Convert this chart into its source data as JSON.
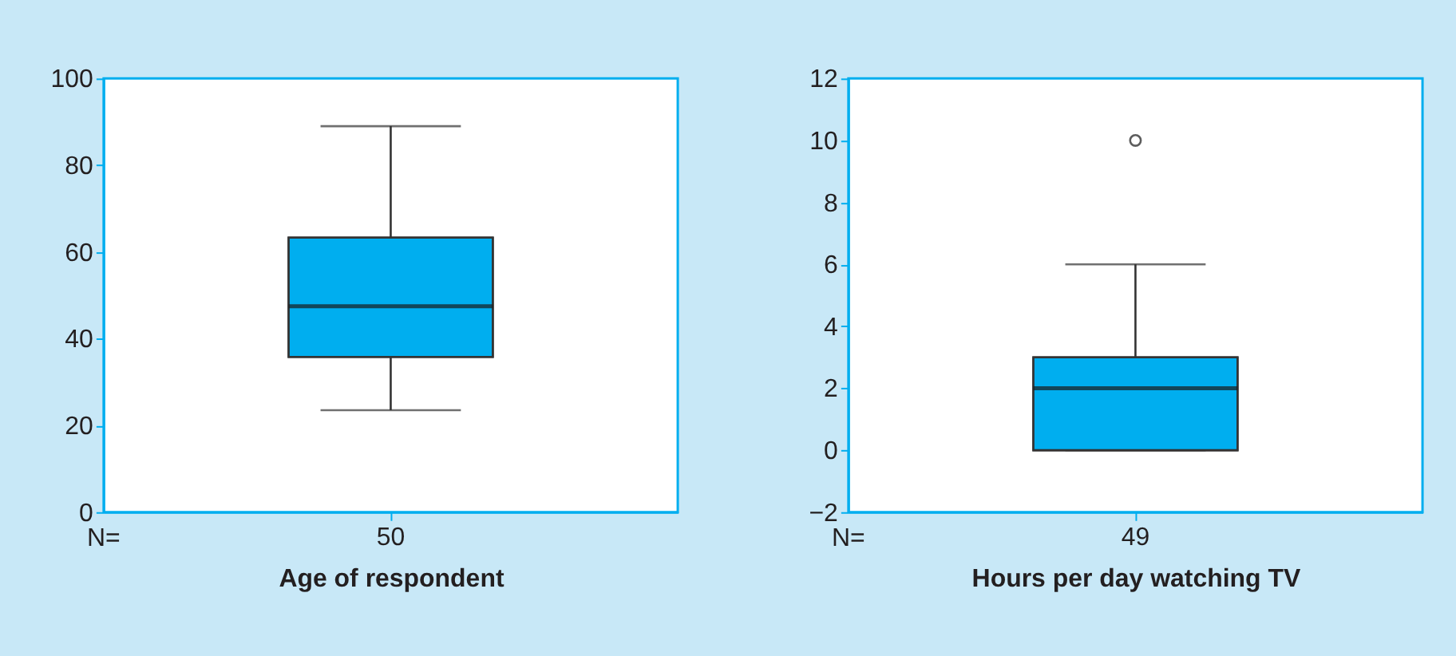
{
  "chart_data": [
    {
      "type": "box",
      "categories": [
        "50"
      ],
      "xlabel": "Age of respondent",
      "annotations": [
        "N="
      ],
      "color": "#00aeef",
      "ylim": [
        0,
        100
      ],
      "yticks": [
        0,
        20,
        40,
        60,
        80,
        100
      ],
      "boxes": [
        {
          "low": 23.5,
          "q1": 35.8,
          "median": 47.5,
          "q3": 63.3,
          "high": 89
        }
      ]
    },
    {
      "type": "box",
      "categories": [
        "49"
      ],
      "xlabel": "Hours per day watching TV",
      "annotations": [
        "N="
      ],
      "color": "#00aeef",
      "ylim": [
        -2,
        12
      ],
      "yticks": [
        -2,
        0,
        2,
        4,
        6,
        8,
        10,
        12
      ],
      "boxes": [
        {
          "low": 0,
          "q1": 0,
          "median": 2,
          "q3": 3,
          "high": 6,
          "outliers": [
            10
          ]
        }
      ]
    }
  ]
}
